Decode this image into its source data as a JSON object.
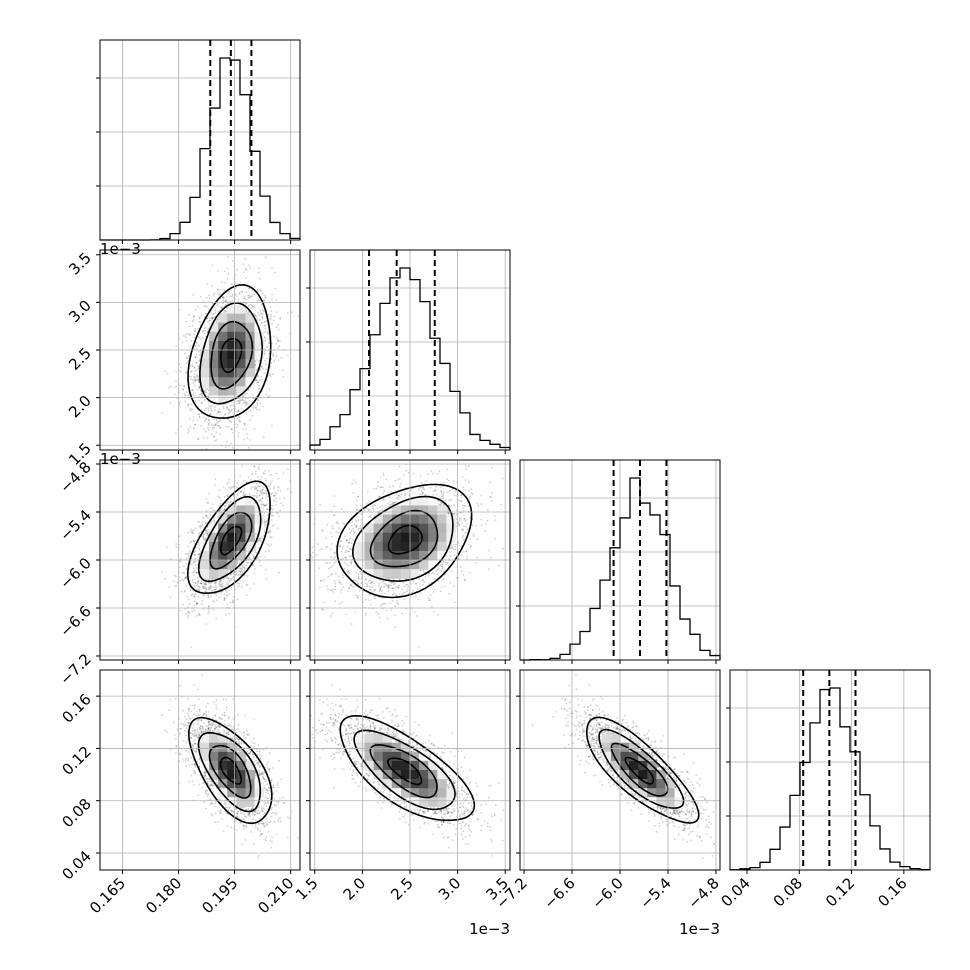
{
  "chart_data": {
    "type": "corner",
    "title": "",
    "parameters": [
      {
        "name": "",
        "mean": 0.194,
        "sd": 0.0055,
        "range": [
          0.159,
          0.2125
        ],
        "ticks": [
          0.165,
          0.18,
          0.195,
          0.21
        ],
        "tick_labels": [
          "0.165",
          "0.180",
          "0.195",
          "0.210"
        ],
        "quantiles": [
          0.1885,
          0.194,
          0.1995
        ]
      },
      {
        "name": "",
        "mean": 2.45,
        "sd": 0.35,
        "range": [
          1.45,
          3.55
        ],
        "ticks": [
          1.5,
          2.0,
          2.5,
          3.0,
          3.5
        ],
        "tick_labels": [
          "1.5",
          "2.0",
          "2.5",
          "3.0",
          "3.5"
        ],
        "quantiles": [
          2.07,
          2.36,
          2.76
        ],
        "offset_label": "1e−3"
      },
      {
        "name": "",
        "mean": -5.75,
        "sd": 0.35,
        "range": [
          -7.25,
          -4.75
        ],
        "ticks": [
          -7.2,
          -6.6,
          -6.0,
          -5.4,
          -4.8
        ],
        "tick_labels": [
          "−7.2",
          "−6.6",
          "−6.0",
          "−5.4",
          "−4.8"
        ],
        "quantiles": [
          -6.08,
          -5.75,
          -5.42
        ],
        "offset_label": "1e−3"
      },
      {
        "name": "",
        "mean": 0.103,
        "sd": 0.02,
        "range": [
          0.027,
          0.18
        ],
        "ticks": [
          0.04,
          0.08,
          0.12,
          0.16
        ],
        "tick_labels": [
          "0.04",
          "0.08",
          "0.12",
          "0.16"
        ],
        "quantiles": [
          0.083,
          0.103,
          0.123
        ]
      }
    ],
    "correlations": [
      {
        "pair": [
          1,
          0
        ],
        "rho": 0.25
      },
      {
        "pair": [
          2,
          0
        ],
        "rho": 0.6
      },
      {
        "pair": [
          2,
          1
        ],
        "rho": 0.3
      },
      {
        "pair": [
          3,
          0
        ],
        "rho": -0.6
      },
      {
        "pair": [
          3,
          1
        ],
        "rho": -0.7
      },
      {
        "pair": [
          3,
          2
        ],
        "rho": -0.8
      }
    ],
    "diagonal": "1D histograms with 16/50/84% quantile dashed lines",
    "off_diagonal": "2D density (grayscale), scatter points, 4 contour levels",
    "grid": true
  }
}
